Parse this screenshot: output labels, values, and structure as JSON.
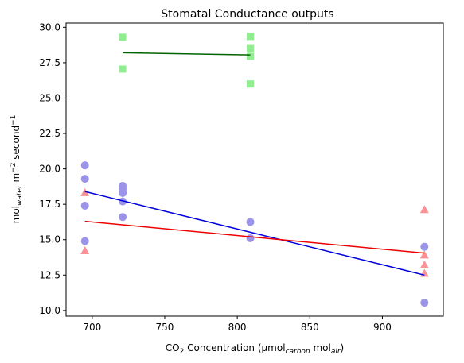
{
  "chart_data": {
    "type": "scatter",
    "title": "Stomatal Conductance outputs",
    "xlabel": {
      "parts": [
        {
          "text": "CO"
        },
        {
          "text": "2",
          "style": "sub"
        },
        {
          "text": " Concentration (µmol"
        },
        {
          "text": "carbon",
          "style": "sub-italic"
        },
        {
          "text": " mol"
        },
        {
          "text": "air",
          "style": "sub-italic"
        },
        {
          "text": ")"
        }
      ]
    },
    "ylabel": {
      "parts": [
        {
          "text": "mol"
        },
        {
          "text": "water",
          "style": "sub-italic"
        },
        {
          "text": " m"
        },
        {
          "text": "−2",
          "style": "sup"
        },
        {
          "text": " second"
        },
        {
          "text": "−1",
          "style": "sup"
        }
      ]
    },
    "xlim": [
      682,
      942
    ],
    "ylim": [
      9.6,
      30.3
    ],
    "xticks": [
      700,
      750,
      800,
      850,
      900
    ],
    "yticks": [
      10.0,
      12.5,
      15.0,
      17.5,
      20.0,
      22.5,
      25.0,
      27.5,
      30.0
    ],
    "xtick_labels": [
      "700",
      "750",
      "800",
      "850",
      "900"
    ],
    "ytick_labels": [
      "10.0",
      "12.5",
      "15.0",
      "17.5",
      "20.0",
      "22.5",
      "25.0",
      "27.5",
      "30.0"
    ],
    "grid": false,
    "legend": null,
    "series": [
      {
        "marker": "square",
        "color": "#90ee90",
        "line_color": "#006400",
        "points": [
          [
            721,
            29.3
          ],
          [
            721,
            27.05
          ],
          [
            809,
            29.35
          ],
          [
            809,
            28.5
          ],
          [
            809,
            27.95
          ],
          [
            809,
            26.0
          ]
        ],
        "fit": [
          [
            721,
            28.2
          ],
          [
            809,
            28.05
          ]
        ]
      },
      {
        "marker": "circle",
        "color": "#9b94e8",
        "line_color": "#0000dd",
        "points": [
          [
            695,
            20.25
          ],
          [
            695,
            19.3
          ],
          [
            695,
            17.4
          ],
          [
            695,
            14.9
          ],
          [
            721,
            18.8
          ],
          [
            721,
            18.6
          ],
          [
            721,
            18.3
          ],
          [
            721,
            17.7
          ],
          [
            721,
            16.6
          ],
          [
            809,
            16.25
          ],
          [
            809,
            15.1
          ],
          [
            929,
            14.5
          ],
          [
            929,
            10.55
          ]
        ],
        "fit": [
          [
            695,
            18.4
          ],
          [
            929,
            12.5
          ]
        ]
      },
      {
        "marker": "triangle",
        "color": "#f99196",
        "line_color": "#ee0000",
        "points": [
          [
            695,
            18.3
          ],
          [
            695,
            14.2
          ],
          [
            929,
            17.1
          ],
          [
            929,
            13.9
          ],
          [
            929,
            13.2
          ],
          [
            929,
            12.6
          ]
        ],
        "fit": [
          [
            695,
            16.3
          ],
          [
            929,
            14.05
          ]
        ]
      }
    ]
  }
}
